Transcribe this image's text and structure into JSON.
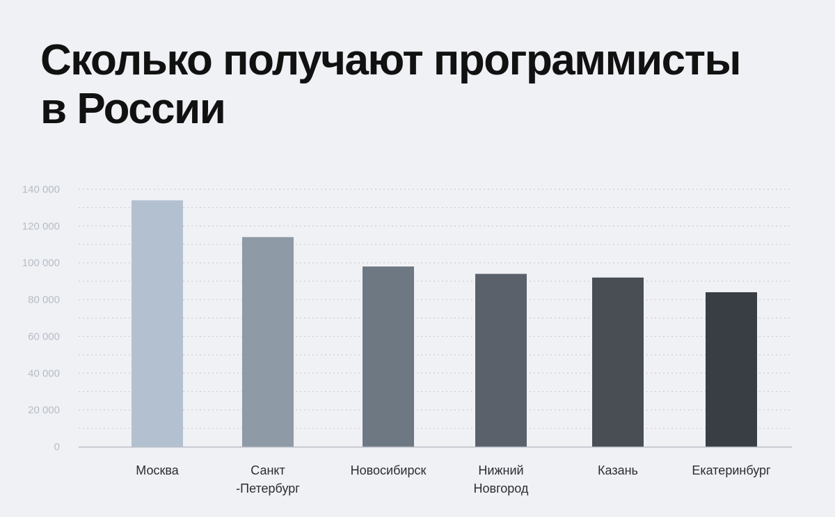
{
  "title_lines": [
    "Сколько получают программисты",
    "в России"
  ],
  "colors": {
    "background": "#f0f1f5",
    "grid": "#c9cdd4",
    "baseline": "#b9bec6",
    "bars": [
      "#b3c0cf",
      "#8e9aa6",
      "#6e7883",
      "#5a616a",
      "#494e55",
      "#393d44"
    ]
  },
  "chart_data": {
    "type": "bar",
    "title": "Сколько получают программисты в России",
    "categories": [
      "Москва",
      "Санкт -Петербург",
      "Новосибирск",
      "Нижний Новгород",
      "Казань",
      "Екатеринбург"
    ],
    "category_lines": [
      [
        "Москва"
      ],
      [
        "Санкт",
        "-Петербург"
      ],
      [
        "Новосибирск"
      ],
      [
        "Нижний",
        "Новгород"
      ],
      [
        "Казань"
      ],
      [
        "Екатеринбург"
      ]
    ],
    "values": [
      134000,
      114000,
      98000,
      94000,
      92000,
      84000
    ],
    "ylim": [
      0,
      140000
    ],
    "yticks": [
      0,
      20000,
      40000,
      60000,
      80000,
      100000,
      120000,
      140000
    ],
    "ytick_labels": [
      "0",
      "20 000",
      "40 000",
      "60 000",
      "80 000",
      "100 000",
      "120 000",
      "140 000"
    ],
    "xlabel": "",
    "ylabel": "",
    "grid": true,
    "legend": "none"
  }
}
